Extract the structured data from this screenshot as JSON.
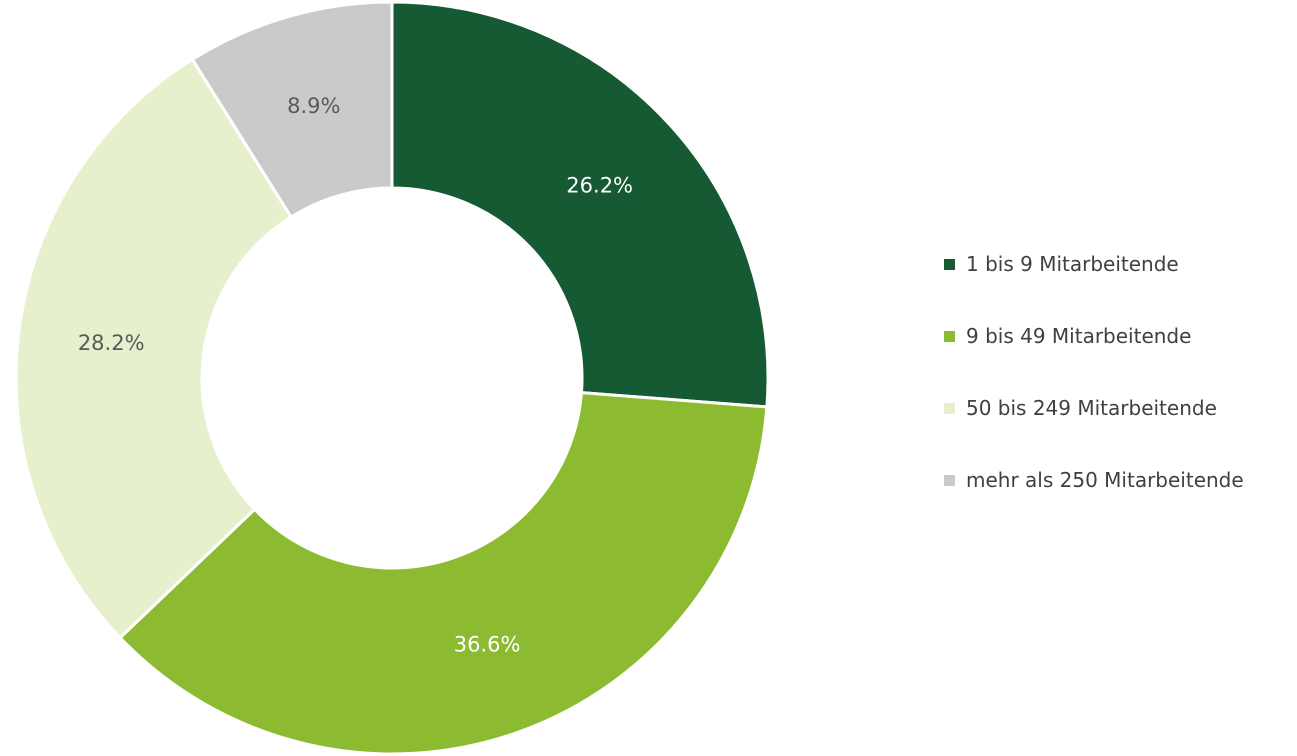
{
  "chart_data": {
    "type": "pie",
    "variant": "donut",
    "title": "",
    "categories": [
      "1 bis 9 Mitarbeitende",
      "9 bis 49 Mitarbeitende",
      "50 bis 249 Mitarbeitende",
      "mehr als 250 Mitarbeitende"
    ],
    "values": [
      26.2,
      36.6,
      28.2,
      8.9
    ],
    "data_labels": [
      "26.2%",
      "36.6%",
      "28.2%",
      "8.9%"
    ],
    "colors": [
      "#165a34",
      "#8cbb32",
      "#e7f0cd",
      "#cacaca"
    ],
    "label_colors": [
      "#ffffff",
      "#ffffff",
      "#595959",
      "#595959"
    ],
    "start_angle_deg": 0,
    "direction": "clockwise",
    "legend": {
      "position": "right",
      "items": [
        {
          "label": "1 bis 9 Mitarbeitende",
          "color": "#165a34"
        },
        {
          "label": "9 bis 49 Mitarbeitende",
          "color": "#8cbb32"
        },
        {
          "label": "50 bis 249 Mitarbeitende",
          "color": "#e7f0cd"
        },
        {
          "label": "mehr als 250 Mitarbeitende",
          "color": "#cacaca"
        }
      ]
    }
  }
}
